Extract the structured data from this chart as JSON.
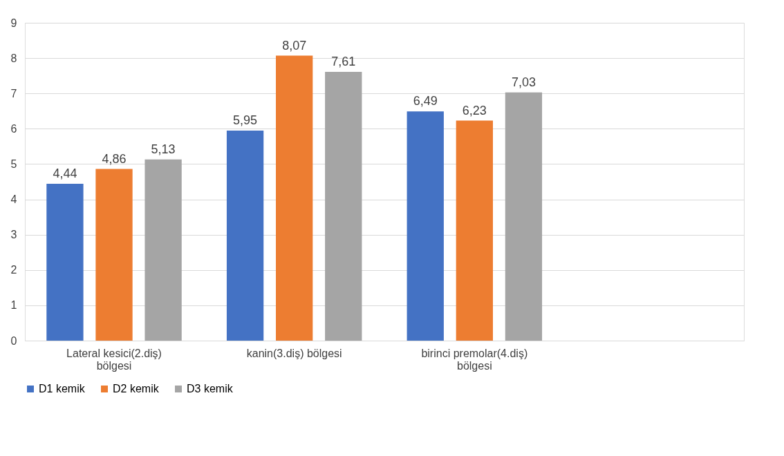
{
  "chart_data": {
    "type": "bar",
    "categories": [
      "Lateral kesici(2.diş) bölgesi",
      "kanin(3.diş) bölgesi",
      "birinci premolar(4.diş) bölgesi",
      null
    ],
    "series": [
      {
        "name": "D1 kemik",
        "color": "#4472c4",
        "values": [
          4.44,
          5.95,
          6.49,
          null
        ],
        "value_labels": [
          "4,44",
          "5,95",
          "6,49",
          null
        ]
      },
      {
        "name": "D2 kemik",
        "color": "#ed7d31",
        "values": [
          4.86,
          8.07,
          6.23,
          null
        ],
        "value_labels": [
          "4,86",
          "8,07",
          "6,23",
          null
        ]
      },
      {
        "name": "D3 kemik",
        "color": "#a5a5a5",
        "values": [
          5.13,
          7.61,
          7.03,
          null
        ],
        "value_labels": [
          "5,13",
          "7,61",
          "7,03",
          null
        ]
      }
    ],
    "ylim": [
      0,
      9
    ],
    "yticks": [
      0,
      1,
      2,
      3,
      4,
      5,
      6,
      7,
      8,
      9
    ],
    "grid": "y",
    "legend": "bottom"
  }
}
